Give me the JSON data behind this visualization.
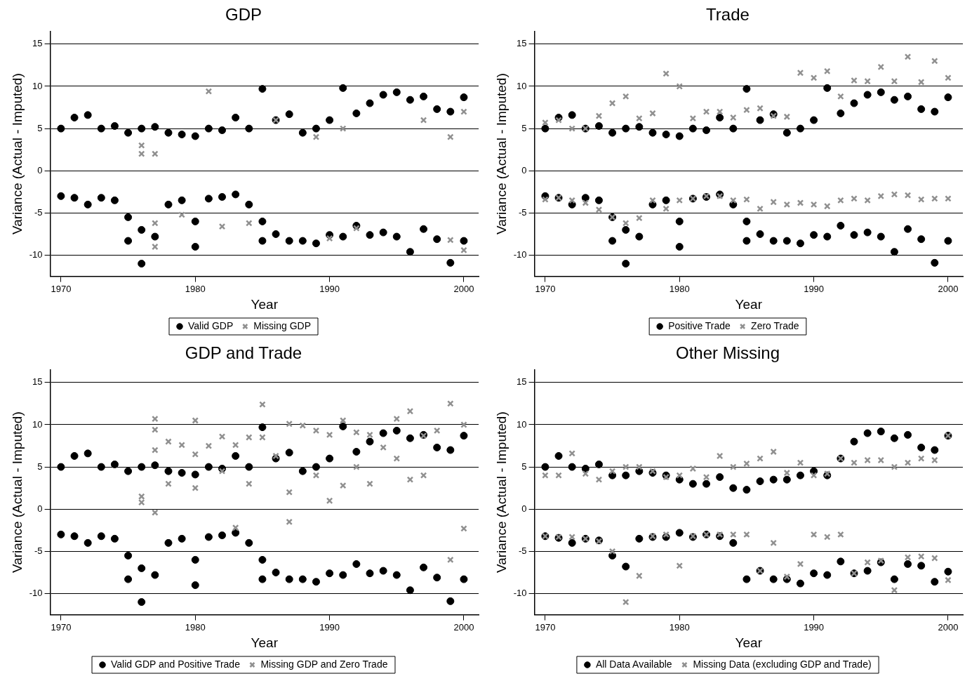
{
  "chart_data": [
    {
      "type": "scatter",
      "title": "GDP",
      "xlabel": "Year",
      "ylabel": "Variance (Actual - Imputed)",
      "xlim": [
        1969.2,
        2001.1
      ],
      "xticks": [
        1970,
        1980,
        1990,
        2000
      ],
      "ylim": [
        -12.5,
        16.5
      ],
      "yticks": [
        -10,
        -5,
        0,
        5,
        10,
        15
      ],
      "grid": "y",
      "legend": "bottom",
      "series": [
        {
          "name": "Valid GDP",
          "color": "#000000",
          "marker": "circle",
          "x": [
            1970,
            1970,
            1971,
            1971,
            1972,
            1972,
            1973,
            1973,
            1974,
            1974,
            1975,
            1975,
            1975,
            1976,
            1976,
            1976,
            1977,
            1977,
            1978,
            1978,
            1979,
            1979,
            1980,
            1980,
            1980,
            1981,
            1981,
            1982,
            1982,
            1983,
            1983,
            1984,
            1984,
            1985,
            1985,
            1985,
            1986,
            1986,
            1987,
            1987,
            1988,
            1988,
            1989,
            1989,
            1990,
            1990,
            1991,
            1991,
            1992,
            1992,
            1993,
            1993,
            1994,
            1994,
            1995,
            1995,
            1996,
            1996,
            1997,
            1997,
            1998,
            1998,
            1999,
            1999,
            2000,
            2000
          ],
          "values": [
            5,
            -3,
            6.3,
            -3.2,
            6.6,
            -4,
            5,
            -3.2,
            5.3,
            -3.5,
            4.5,
            -5.5,
            -8.3,
            5,
            -7,
            -11,
            5.2,
            -7.8,
            4.5,
            -4,
            4.3,
            -3.5,
            4.1,
            -6,
            -9,
            5,
            -3.3,
            4.8,
            -3.1,
            6.3,
            -2.8,
            5,
            -4,
            9.7,
            -6,
            -8.3,
            6,
            -7.5,
            6.7,
            -8.3,
            4.5,
            -8.3,
            5,
            -8.6,
            6,
            -7.6,
            9.8,
            -7.8,
            6.8,
            -6.5,
            8,
            -7.6,
            9,
            -7.3,
            9.3,
            -7.8,
            8.4,
            -9.6,
            8.8,
            -6.9,
            7.3,
            -8.1,
            7,
            -10.9,
            8.7,
            -8.3
          ]
        },
        {
          "name": "Missing GDP",
          "color": "#909090",
          "marker": "cross",
          "x": [
            1976,
            1976,
            1977,
            1977,
            1977,
            1979,
            1981,
            1982,
            1984,
            1986,
            1989,
            1990,
            1991,
            1992,
            1997,
            1999,
            1999,
            2000,
            2000
          ],
          "values": [
            3,
            2,
            2,
            -6.2,
            -9,
            -5.2,
            9.4,
            -6.6,
            -6.2,
            6,
            4,
            -8,
            5,
            -6.8,
            6,
            4,
            -8.2,
            7,
            -9.4
          ]
        }
      ]
    },
    {
      "type": "scatter",
      "title": "Trade",
      "xlabel": "Year",
      "ylabel": "Variance (Actual - Imputed)",
      "xlim": [
        1969.2,
        2001.1
      ],
      "xticks": [
        1970,
        1980,
        1990,
        2000
      ],
      "ylim": [
        -12.5,
        16.5
      ],
      "yticks": [
        -10,
        -5,
        0,
        5,
        10,
        15
      ],
      "grid": "y",
      "legend": "bottom",
      "series": [
        {
          "name": "Positive Trade",
          "color": "#000000",
          "marker": "circle",
          "x": [
            1970,
            1970,
            1971,
            1971,
            1972,
            1972,
            1973,
            1973,
            1974,
            1974,
            1975,
            1975,
            1975,
            1976,
            1976,
            1976,
            1977,
            1977,
            1978,
            1978,
            1979,
            1979,
            1980,
            1980,
            1980,
            1981,
            1981,
            1982,
            1982,
            1983,
            1983,
            1984,
            1984,
            1985,
            1985,
            1985,
            1986,
            1986,
            1987,
            1987,
            1988,
            1988,
            1989,
            1989,
            1990,
            1990,
            1991,
            1991,
            1992,
            1992,
            1993,
            1993,
            1994,
            1994,
            1995,
            1995,
            1996,
            1996,
            1997,
            1997,
            1998,
            1998,
            1999,
            1999,
            2000,
            2000
          ],
          "values": [
            5,
            -3,
            6.3,
            -3.2,
            6.6,
            -4,
            5,
            -3.2,
            5.3,
            -3.5,
            4.5,
            -5.5,
            -8.3,
            5,
            -7,
            -11,
            5.2,
            -7.8,
            4.5,
            -4,
            4.3,
            -3.5,
            4.1,
            -6,
            -9,
            5,
            -3.3,
            4.8,
            -3.1,
            6.3,
            -2.8,
            5,
            -4,
            9.7,
            -6,
            -8.3,
            6,
            -7.5,
            6.7,
            -8.3,
            4.5,
            -8.3,
            5,
            -8.6,
            6,
            -7.6,
            9.8,
            -7.8,
            6.8,
            -6.5,
            8,
            -7.6,
            9,
            -7.3,
            9.3,
            -7.8,
            8.4,
            -9.6,
            8.8,
            -6.9,
            7.3,
            -8.1,
            7,
            -10.9,
            8.7,
            -8.3
          ]
        },
        {
          "name": "Zero Trade",
          "color": "#909090",
          "marker": "cross",
          "x": [
            1970,
            1970,
            1971,
            1971,
            1972,
            1972,
            1973,
            1973,
            1974,
            1974,
            1975,
            1975,
            1976,
            1976,
            1977,
            1977,
            1978,
            1978,
            1979,
            1979,
            1980,
            1980,
            1981,
            1981,
            1982,
            1982,
            1983,
            1983,
            1984,
            1984,
            1985,
            1985,
            1986,
            1986,
            1987,
            1987,
            1988,
            1988,
            1989,
            1989,
            1990,
            1990,
            1991,
            1991,
            1992,
            1992,
            1993,
            1993,
            1994,
            1994,
            1995,
            1995,
            1996,
            1996,
            1997,
            1997,
            1998,
            1998,
            1999,
            1999,
            2000,
            2000
          ],
          "values": [
            5.7,
            -3.4,
            6,
            -3.2,
            5,
            -3.5,
            5,
            -3.8,
            6.5,
            -4.6,
            8,
            -5.5,
            8.8,
            -6.2,
            6.2,
            -5.6,
            6.8,
            -3.5,
            11.5,
            -4.5,
            10,
            -3.5,
            6.2,
            -3.3,
            7,
            -3,
            7,
            -3,
            6.3,
            -3.5,
            7.2,
            -3.4,
            7.4,
            -4.5,
            6.5,
            -3.7,
            6.4,
            -4,
            11.6,
            -3.8,
            11,
            -4,
            11.8,
            -4.2,
            8.8,
            -3.5,
            10.7,
            -3.3,
            10.6,
            -3.5,
            12.3,
            -3,
            10.6,
            -2.8,
            13.5,
            -2.9,
            10.5,
            -3.4,
            13,
            -3.3,
            11,
            -3.3
          ]
        }
      ]
    },
    {
      "type": "scatter",
      "title": "GDP and Trade",
      "xlabel": "Year",
      "ylabel": "Variance (Actual - Imputed)",
      "xlim": [
        1969.2,
        2001.1
      ],
      "xticks": [
        1970,
        1980,
        1990,
        2000
      ],
      "ylim": [
        -12.5,
        16.5
      ],
      "yticks": [
        -10,
        -5,
        0,
        5,
        10,
        15
      ],
      "grid": "y",
      "legend": "bottom",
      "series": [
        {
          "name": "Valid GDP and Positive Trade",
          "color": "#000000",
          "marker": "circle",
          "x": [
            1970,
            1970,
            1971,
            1971,
            1972,
            1972,
            1973,
            1973,
            1974,
            1974,
            1975,
            1975,
            1975,
            1976,
            1976,
            1976,
            1977,
            1977,
            1978,
            1978,
            1979,
            1979,
            1980,
            1980,
            1980,
            1981,
            1981,
            1982,
            1982,
            1983,
            1983,
            1984,
            1984,
            1985,
            1985,
            1985,
            1986,
            1986,
            1987,
            1987,
            1988,
            1988,
            1989,
            1989,
            1990,
            1990,
            1991,
            1991,
            1992,
            1992,
            1993,
            1993,
            1994,
            1994,
            1995,
            1995,
            1996,
            1996,
            1997,
            1997,
            1998,
            1998,
            1999,
            1999,
            2000,
            2000
          ],
          "values": [
            5,
            -3,
            6.3,
            -3.2,
            6.6,
            -4,
            5,
            -3.2,
            5.3,
            -3.5,
            4.5,
            -5.5,
            -8.3,
            5,
            -7,
            -11,
            5.2,
            -7.8,
            4.5,
            -4,
            4.3,
            -3.5,
            4.1,
            -6,
            -9,
            5,
            -3.3,
            4.8,
            -3.1,
            6.3,
            -2.8,
            5,
            -4,
            9.7,
            -6,
            -8.3,
            6,
            -7.5,
            6.7,
            -8.3,
            4.5,
            -8.3,
            5,
            -8.6,
            6,
            -7.6,
            9.8,
            -7.8,
            6.8,
            -6.5,
            8,
            -7.6,
            9,
            -7.3,
            9.3,
            -7.8,
            8.4,
            -9.6,
            8.8,
            -6.9,
            7.3,
            -8.1,
            7,
            -10.9,
            8.7,
            -8.3
          ]
        },
        {
          "name": "Missing GDP and Zero Trade",
          "color": "#909090",
          "marker": "cross",
          "x": [
            1976,
            1976,
            1977,
            1977,
            1977,
            1977,
            1978,
            1978,
            1979,
            1980,
            1980,
            1980,
            1981,
            1982,
            1982,
            1983,
            1983,
            1984,
            1984,
            1985,
            1985,
            1986,
            1987,
            1987,
            1987,
            1988,
            1989,
            1989,
            1990,
            1990,
            1991,
            1991,
            1992,
            1992,
            1993,
            1993,
            1994,
            1995,
            1995,
            1996,
            1996,
            1997,
            1997,
            1998,
            1999,
            1999,
            2000,
            2000
          ],
          "values": [
            1.5,
            0.8,
            10.7,
            9.4,
            7,
            -0.4,
            8,
            3,
            7.6,
            10.5,
            6.5,
            2.5,
            7.5,
            8.6,
            4.5,
            7.6,
            -2.2,
            8.5,
            3,
            12.4,
            8.5,
            6.3,
            10.1,
            2,
            -1.5,
            9.9,
            9.3,
            4,
            8.8,
            1,
            10.5,
            2.8,
            9.1,
            5,
            8.8,
            3,
            7.3,
            10.7,
            6,
            11.6,
            3.5,
            8.7,
            4,
            9.3,
            12.5,
            -6,
            10,
            -2.3
          ]
        }
      ]
    },
    {
      "type": "scatter",
      "title": "Other Missing",
      "xlabel": "Year",
      "ylabel": "Variance (Actual - Imputed)",
      "xlim": [
        1969.2,
        2001.1
      ],
      "xticks": [
        1970,
        1980,
        1990,
        2000
      ],
      "ylim": [
        -12.5,
        16.5
      ],
      "yticks": [
        -10,
        -5,
        0,
        5,
        10,
        15
      ],
      "grid": "y",
      "legend": "bottom",
      "series": [
        {
          "name": "All Data Available",
          "color": "#000000",
          "marker": "circle",
          "x": [
            1970,
            1970,
            1971,
            1971,
            1972,
            1972,
            1973,
            1973,
            1974,
            1974,
            1975,
            1975,
            1976,
            1976,
            1977,
            1977,
            1978,
            1978,
            1979,
            1979,
            1980,
            1980,
            1981,
            1981,
            1982,
            1982,
            1983,
            1983,
            1984,
            1984,
            1985,
            1985,
            1986,
            1986,
            1987,
            1987,
            1988,
            1988,
            1989,
            1989,
            1990,
            1990,
            1991,
            1991,
            1992,
            1992,
            1993,
            1993,
            1994,
            1994,
            1995,
            1995,
            1996,
            1996,
            1997,
            1997,
            1998,
            1998,
            1999,
            1999,
            2000,
            2000
          ],
          "values": [
            5,
            -3.2,
            6.3,
            -3.4,
            5,
            -4,
            4.8,
            -3.5,
            5.3,
            -3.7,
            4,
            -5.5,
            4,
            -6.8,
            4.5,
            -3.5,
            4.3,
            -3.3,
            4,
            -3.3,
            3.5,
            -2.8,
            3,
            -3.3,
            3,
            -3,
            3.8,
            -3.2,
            2.5,
            -4,
            2.3,
            -8.3,
            3.3,
            -7.3,
            3.5,
            -8.3,
            3.5,
            -8.3,
            4,
            -8.8,
            4.5,
            -7.6,
            4,
            -7.8,
            6,
            -6.2,
            8,
            -7.6,
            9,
            -7.3,
            9.2,
            -6.3,
            8.4,
            -8.3,
            8.8,
            -6.5,
            7.3,
            -6.7,
            7,
            -8.6,
            8.7,
            -7.4
          ]
        },
        {
          "name": "Missing Data (excluding GDP and Trade)",
          "color": "#909090",
          "marker": "cross",
          "x": [
            1970,
            1970,
            1971,
            1971,
            1972,
            1972,
            1973,
            1973,
            1974,
            1974,
            1975,
            1975,
            1976,
            1976,
            1977,
            1977,
            1978,
            1978,
            1979,
            1979,
            1980,
            1980,
            1981,
            1981,
            1982,
            1982,
            1983,
            1983,
            1984,
            1984,
            1985,
            1985,
            1986,
            1986,
            1987,
            1987,
            1988,
            1988,
            1989,
            1989,
            1990,
            1990,
            1991,
            1991,
            1992,
            1992,
            1993,
            1993,
            1994,
            1994,
            1995,
            1995,
            1996,
            1996,
            1997,
            1997,
            1998,
            1998,
            1999,
            1999,
            2000,
            2000
          ],
          "values": [
            4,
            -3.2,
            4,
            -3.3,
            6.6,
            -3.3,
            4.2,
            -3.5,
            3.5,
            -3.8,
            4.5,
            -5,
            5,
            -11,
            5,
            -7.9,
            4.5,
            -3.2,
            3.8,
            -3,
            4,
            -6.7,
            4.8,
            -3.2,
            3.8,
            -3,
            6.3,
            -3,
            5,
            -3,
            5.4,
            -3,
            6,
            -7.3,
            6.8,
            -4,
            4.3,
            -8,
            5.5,
            -6.5,
            4,
            -3,
            4.2,
            -3.3,
            6,
            -3,
            5.5,
            -7.6,
            5.8,
            -6.3,
            5.8,
            -6.1,
            5,
            -9.6,
            5.5,
            -5.7,
            6,
            -5.6,
            5.8,
            -5.8,
            8.7,
            -8.4
          ]
        }
      ]
    }
  ]
}
